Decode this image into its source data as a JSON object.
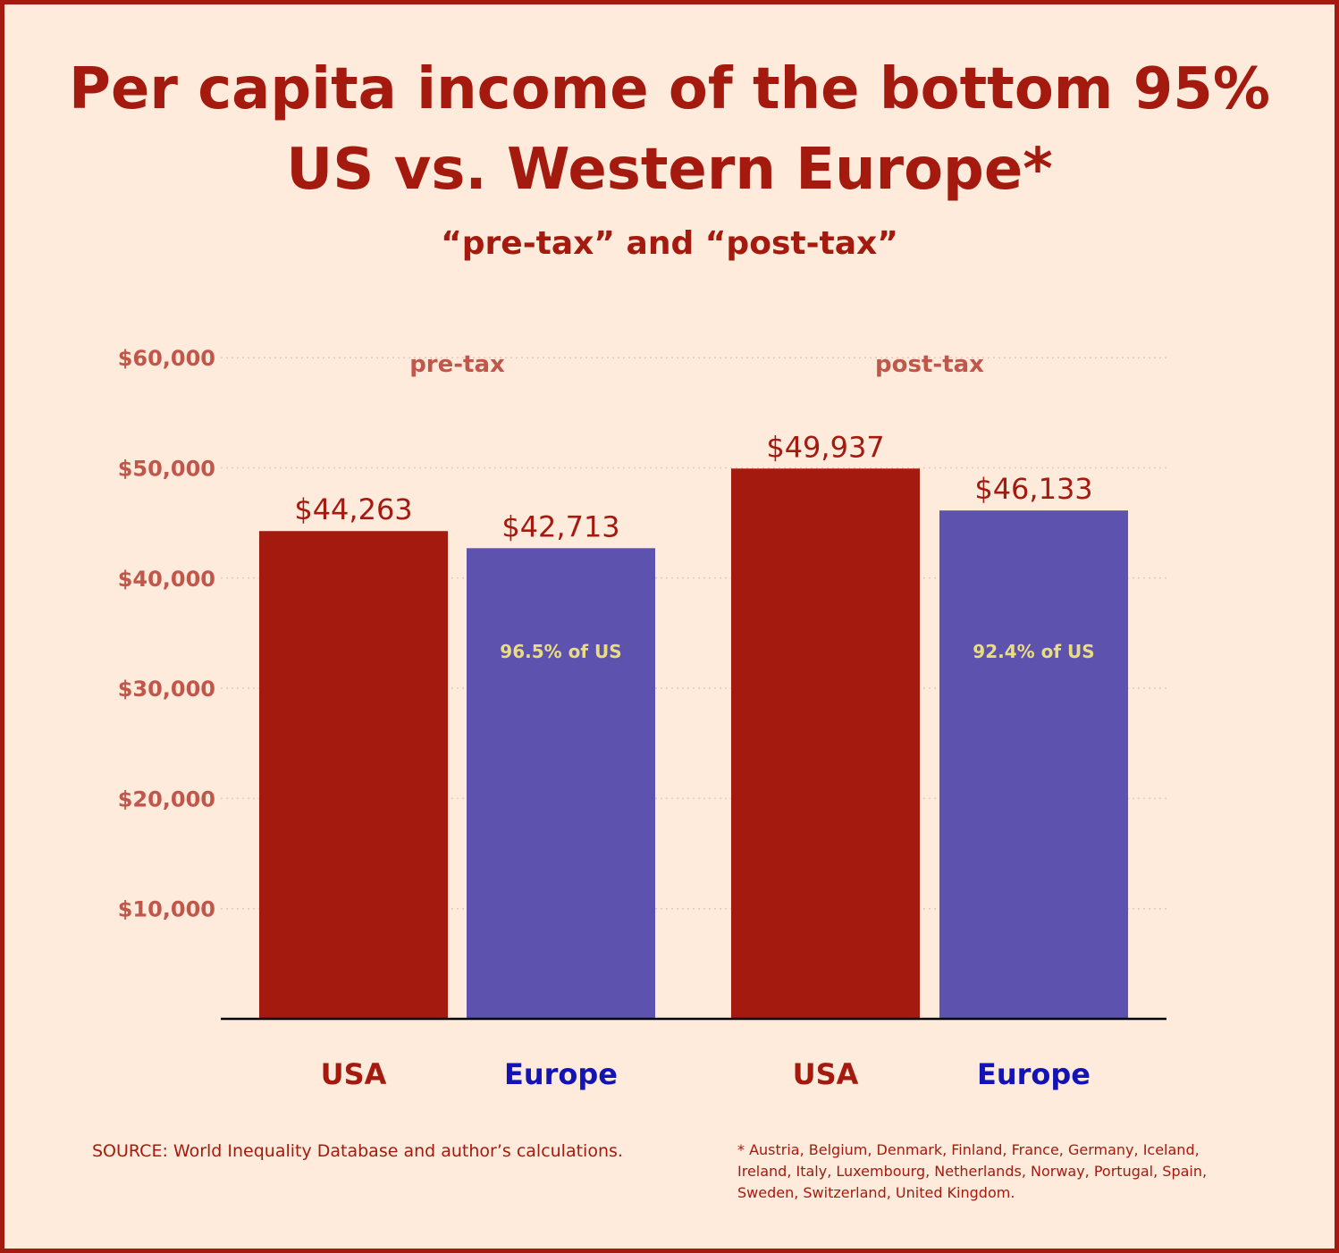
{
  "colors": {
    "background": "#feebdc",
    "border": "#a41a0e",
    "usa": "#a41a0e",
    "europe": "#5d53ae",
    "europe_label": "#1414b4",
    "axis_text": "#c1574b",
    "pct_text": "#eadc80",
    "grid": "#e8c8bc",
    "baseline": "#000000"
  },
  "header": {
    "title_line1": "Per capita income of the bottom 95%",
    "title_line2": "US vs. Western Europe*",
    "subtitle": "“pre-tax” and “post-tax”"
  },
  "chart_data": {
    "type": "bar",
    "title": "Per capita income of the bottom 95% US vs. Western Europe*",
    "subtitle": "“pre-tax” and “post-tax”",
    "xlabel": "",
    "ylabel": "",
    "ylim": [
      0,
      60000
    ],
    "yticks": [
      10000,
      20000,
      30000,
      40000,
      50000,
      60000
    ],
    "ytick_labels": [
      "$10,000",
      "$20,000",
      "$30,000",
      "$40,000",
      "$50,000",
      "$60,000"
    ],
    "grid": true,
    "groups": [
      {
        "name": "pre-tax",
        "bars": [
          {
            "category": "USA",
            "value": 44263,
            "label": "$44,263",
            "note": ""
          },
          {
            "category": "Europe",
            "value": 42713,
            "label": "$42,713",
            "note": "96.5% of US"
          }
        ]
      },
      {
        "name": "post-tax",
        "bars": [
          {
            "category": "USA",
            "value": 49937,
            "label": "$49,937",
            "note": ""
          },
          {
            "category": "Europe",
            "value": 46133,
            "label": "$46,133",
            "note": "92.4% of US"
          }
        ]
      }
    ]
  },
  "footer": {
    "source": "SOURCE: World Inequality Database and author’s calculations.",
    "footnote": "* Austria, Belgium, Denmark, Finland, France, Germany, Iceland, Ireland, Italy, Luxembourg, Netherlands, Norway, Portugal, Spain, Sweden, Switzerland, United Kingdom."
  }
}
